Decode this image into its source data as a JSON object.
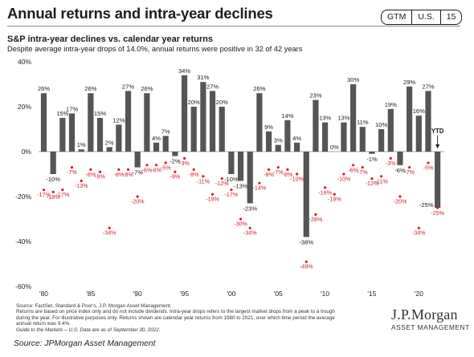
{
  "header": {
    "title": "Annual returns and intra-year declines",
    "badges": [
      "GTM",
      "U.S.",
      "15"
    ]
  },
  "chart_data": {
    "type": "bar",
    "title": "S&P intra-year declines vs. calendar year returns",
    "subtitle": "Despite average intra-year drops of 14.0%, annual returns were positive in 32 of 42 years",
    "x": [
      1980,
      1981,
      1982,
      1983,
      1984,
      1985,
      1986,
      1987,
      1988,
      1989,
      1990,
      1991,
      1992,
      1993,
      1994,
      1995,
      1996,
      1997,
      1998,
      1999,
      2000,
      2001,
      2002,
      2003,
      2004,
      2005,
      2006,
      2007,
      2008,
      2009,
      2010,
      2011,
      2012,
      2013,
      2014,
      2015,
      2016,
      2017,
      2018,
      2019,
      2020,
      2021,
      "YTD"
    ],
    "x_tick_labels": [
      "'80",
      "'85",
      "'90",
      "'95",
      "'00",
      "'05",
      "'10",
      "'15",
      "'20"
    ],
    "annual_returns": [
      26,
      -10,
      15,
      17,
      1,
      26,
      15,
      2,
      12,
      27,
      -7,
      26,
      4,
      7,
      -2,
      34,
      20,
      31,
      27,
      20,
      -10,
      -13,
      -23,
      26,
      9,
      3,
      14,
      4,
      -38,
      23,
      13,
      0,
      13,
      30,
      11,
      -1,
      10,
      19,
      -6,
      29,
      16,
      27,
      -25
    ],
    "intra_year_declines": [
      -17,
      -18,
      -17,
      -7,
      -13,
      -8,
      -9,
      -34,
      -8,
      -8,
      -20,
      -6,
      -6,
      -5,
      -9,
      -3,
      -8,
      -11,
      -19,
      -12,
      -17,
      -30,
      -34,
      -14,
      -8,
      -7,
      -8,
      -10,
      -49,
      -28,
      -16,
      -19,
      -10,
      -6,
      -7,
      -12,
      -11,
      -3,
      -20,
      -7,
      -34,
      -5,
      -25
    ],
    "yticks": [
      -60,
      -40,
      -20,
      0,
      20,
      40
    ],
    "ytick_labels": [
      "-60%",
      "-40%",
      "-20%",
      "0%",
      "20%",
      "40%"
    ],
    "ylim": [
      -60,
      40
    ],
    "ytd_label": "YTD",
    "colors": {
      "bar": "#555555",
      "decline": "#d2202f",
      "axis": "#888888"
    }
  },
  "footnotes": [
    "Source: FactSet, Standard & Poor's, J.P. Morgan Asset Management.",
    "Returns are based on price index only and do not include dividends. Intra-year drops refers to the largest market drops from a peak to a trough",
    "during the year. For illustrative purposes only. Returns shown are calendar year returns from 1980 to 2021, over which time period the average",
    "annual return was 9.4%.",
    "Guide to the Markets – U.S. Data are as of September 30, 2022."
  ],
  "logo": {
    "main": "J.P.Morgan",
    "sub": "ASSET MANAGEMENT"
  },
  "source_caption": "Source: JPMorgan Asset Management"
}
